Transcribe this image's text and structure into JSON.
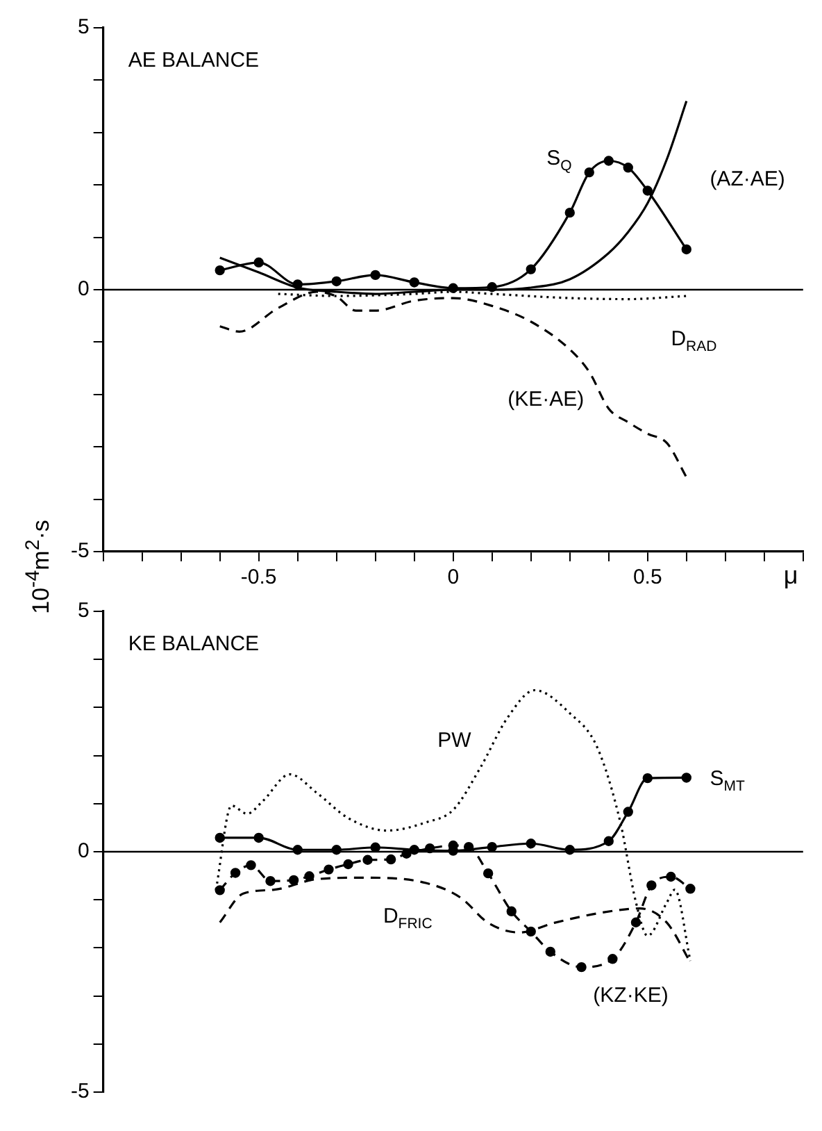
{
  "chart_data": [
    {
      "type": "line",
      "title": "AE BALANCE",
      "xlabel": "μ",
      "ylabel": "10$^{-4}$m$^{2}$·s",
      "legend": false,
      "grid": false,
      "xlim": [
        -0.9,
        0.9
      ],
      "xticks": [
        {
          "value": -0.9,
          "label": null
        },
        {
          "value": -0.8,
          "label": null
        },
        {
          "value": -0.7,
          "label": null
        },
        {
          "value": -0.6,
          "label": null
        },
        -0.5,
        {
          "value": -0.4,
          "label": null
        },
        {
          "value": -0.3,
          "label": null
        },
        {
          "value": -0.2,
          "label": null
        },
        {
          "value": -0.1,
          "label": null
        },
        0,
        {
          "value": 0.1,
          "label": null
        },
        {
          "value": 0.2,
          "label": null
        },
        {
          "value": 0.3,
          "label": null
        },
        {
          "value": 0.4,
          "label": null
        },
        0.5,
        {
          "value": 0.6,
          "label": null
        },
        {
          "value": 0.7,
          "label": null
        },
        {
          "value": 0.8,
          "label": null
        },
        {
          "value": 0.9,
          "label": null
        }
      ],
      "ylim": [
        -5,
        5
      ],
      "yticks": [
        -5,
        {
          "value": -4,
          "label": null
        },
        {
          "value": -3,
          "label": null
        },
        {
          "value": -2,
          "label": null
        },
        {
          "value": -1,
          "label": null
        },
        0,
        {
          "value": 1,
          "label": null
        },
        {
          "value": 2,
          "label": null
        },
        {
          "value": 3,
          "label": null
        },
        {
          "value": 4,
          "label": null
        },
        5
      ],
      "ref_lines": [
        {
          "axis": "y",
          "value": 0,
          "color": "#000000"
        }
      ],
      "series": [
        {
          "name": "S$_{Q}$",
          "color": "#000000",
          "marker": "circle",
          "line_style": "solid",
          "x": [
            -0.6,
            -0.5,
            -0.4,
            -0.3,
            -0.2,
            -0.1,
            0,
            0.1,
            0.2,
            0.3,
            0.35,
            0.4,
            0.45,
            0.5,
            0.6
          ],
          "values": [
            0.37,
            0.52,
            0.1,
            0.16,
            0.28,
            0.14,
            0.03,
            0.05,
            0.39,
            1.47,
            2.24,
            2.46,
            2.33,
            1.89,
            0.77
          ]
        },
        {
          "name": "(AZ·AE)",
          "color": "#000000",
          "marker": "none",
          "line_style": "solid",
          "x": [
            -0.6,
            -0.5,
            -0.4,
            -0.3,
            -0.2,
            -0.1,
            0,
            0.1,
            0.2,
            0.3,
            0.4,
            0.45,
            0.5,
            0.55,
            0.6
          ],
          "values": [
            0.61,
            0.33,
            0.04,
            -0.04,
            -0.08,
            -0.04,
            0,
            0,
            0.04,
            0.2,
            0.7,
            1.1,
            1.65,
            2.5,
            3.6
          ]
        },
        {
          "name": "D$_{RAD}$",
          "color": "#000000",
          "marker": "none",
          "line_style": "dotted",
          "x": [
            -0.45,
            -0.3,
            -0.1,
            0,
            0.1,
            0.3,
            0.45,
            0.6
          ],
          "values": [
            -0.08,
            -0.12,
            -0.08,
            -0.04,
            -0.08,
            -0.16,
            -0.18,
            -0.12
          ]
        },
        {
          "name": "(KE·AE)",
          "color": "#000000",
          "marker": "none",
          "line_style": "dashed",
          "x": [
            -0.6,
            -0.55,
            -0.45,
            -0.35,
            -0.3,
            -0.25,
            -0.2,
            -0.1,
            0,
            0.1,
            0.2,
            0.3,
            0.35,
            0.4,
            0.45,
            0.5,
            0.55,
            0.6
          ],
          "values": [
            -0.7,
            -0.8,
            -0.35,
            -0.04,
            -0.13,
            -0.4,
            -0.4,
            -0.21,
            -0.16,
            -0.31,
            -0.61,
            -1.14,
            -1.57,
            -2.27,
            -2.53,
            -2.75,
            -2.93,
            -3.58
          ]
        }
      ]
    },
    {
      "type": "line",
      "title": "KE BALANCE",
      "legend": false,
      "grid": false,
      "tick_labels": "y",
      "xlim": [
        -0.9,
        0.9
      ],
      "ylim": [
        -5,
        5
      ],
      "yticks": [
        -5,
        {
          "value": -4,
          "label": null
        },
        {
          "value": -3,
          "label": null
        },
        {
          "value": -2,
          "label": null
        },
        {
          "value": -1,
          "label": null
        },
        0,
        {
          "value": 1,
          "label": null
        },
        {
          "value": 2,
          "label": null
        },
        {
          "value": 3,
          "label": null
        },
        {
          "value": 4,
          "label": null
        },
        5
      ],
      "ref_lines": [
        {
          "axis": "y",
          "value": 0,
          "color": "#000000"
        }
      ],
      "series": [
        {
          "name": "PW",
          "color": "#000000",
          "marker": "none",
          "line_style": "dotted",
          "x": [
            -0.61,
            -0.57,
            -0.53,
            -0.49,
            -0.42,
            -0.35,
            -0.27,
            -0.17,
            -0.07,
            0,
            0.07,
            0.14,
            0.21,
            0.3,
            0.37,
            0.43,
            0.47,
            0.5,
            0.55,
            0.57,
            0.61
          ],
          "values": [
            -0.79,
            0.96,
            0.79,
            1.05,
            1.61,
            1.22,
            0.7,
            0.44,
            0.61,
            0.87,
            1.75,
            2.79,
            3.36,
            2.88,
            2.18,
            0.61,
            -1.05,
            -1.75,
            -1.05,
            -0.79,
            -2.27
          ]
        },
        {
          "name": "S$_{MT}$",
          "color": "#000000",
          "marker": "circle",
          "line_style": "solid",
          "x": [
            -0.6,
            -0.5,
            -0.4,
            -0.3,
            -0.2,
            -0.1,
            0,
            0.1,
            0.2,
            0.3,
            0.4,
            0.45,
            0.5,
            0.6
          ],
          "values": [
            0.29,
            0.29,
            0.04,
            0.04,
            0.09,
            0.04,
            0.02,
            0.1,
            0.17,
            0.04,
            0.22,
            0.83,
            1.53,
            1.54
          ]
        },
        {
          "name": "D$_{FRIC}$",
          "color": "#000000",
          "marker": "none",
          "line_style": "dashed",
          "x": [
            -0.6,
            -0.54,
            -0.46,
            -0.35,
            -0.23,
            -0.07,
            0.02,
            0.09,
            0.17,
            0.26,
            0.38,
            0.48,
            0.55,
            0.61
          ],
          "values": [
            -1.47,
            -0.87,
            -0.79,
            -0.57,
            -0.54,
            -0.65,
            -0.96,
            -1.48,
            -1.68,
            -1.48,
            -1.27,
            -1.18,
            -1.48,
            -2.3
          ]
        },
        {
          "name": "(KZ·KE)",
          "color": "#000000",
          "marker": "circle",
          "line_style": "dashed",
          "x": [
            -0.6,
            -0.56,
            -0.52,
            -0.47,
            -0.41,
            -0.37,
            -0.32,
            -0.27,
            -0.22,
            -0.16,
            -0.12,
            -0.06,
            0,
            0.04,
            0.09,
            0.15,
            0.2,
            0.25,
            0.33,
            0.41,
            0.47,
            0.51,
            0.56,
            0.61
          ],
          "values": [
            -0.8,
            -0.44,
            -0.28,
            -0.61,
            -0.59,
            -0.51,
            -0.37,
            -0.26,
            -0.17,
            -0.16,
            -0.04,
            0.07,
            0.13,
            0.1,
            -0.45,
            -1.24,
            -1.66,
            -2.08,
            -2.4,
            -2.23,
            -1.47,
            -0.7,
            -0.52,
            -0.77
          ]
        }
      ]
    }
  ]
}
